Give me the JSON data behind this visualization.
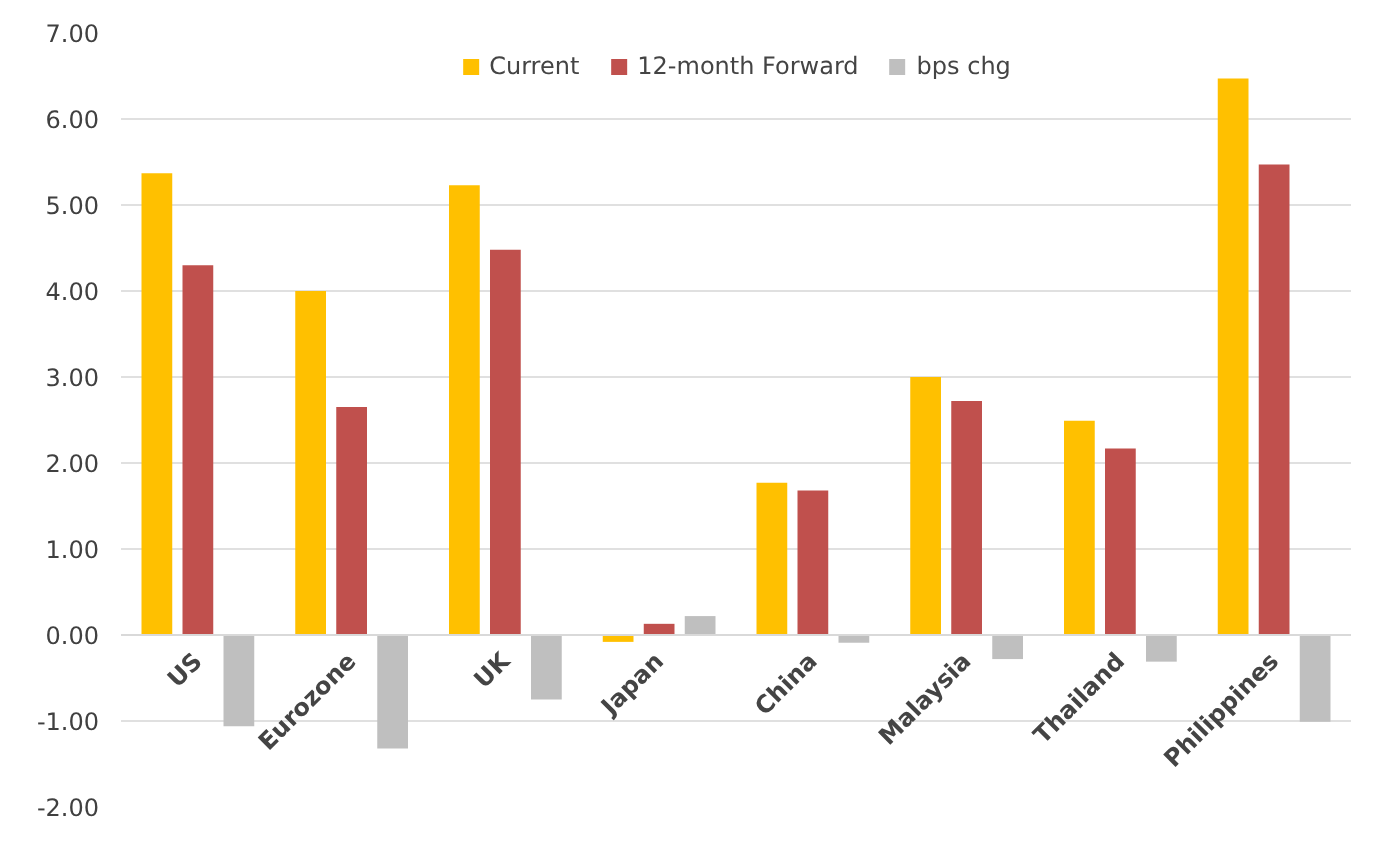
{
  "chart_data": {
    "type": "bar",
    "categories": [
      "US",
      "Eurozone",
      "UK",
      "Japan",
      "China",
      "Malaysia",
      "Thailand",
      "Philippines"
    ],
    "series": [
      {
        "name": "Current",
        "color": "#ffc000",
        "values": [
          5.37,
          4.0,
          5.23,
          -0.08,
          1.77,
          3.0,
          2.49,
          6.47
        ]
      },
      {
        "name": "12-month Forward",
        "color": "#c0504d",
        "values": [
          4.3,
          2.65,
          4.48,
          0.13,
          1.68,
          2.72,
          2.17,
          5.47
        ]
      },
      {
        "name": "bps chg",
        "color": "#bfbfbf",
        "values": [
          -1.06,
          -1.32,
          -0.75,
          0.22,
          -0.09,
          -0.28,
          -0.31,
          -1.01
        ]
      }
    ],
    "ylim": [
      -2,
      7
    ],
    "yticks": [
      {
        "value": -2,
        "label": "-2.00"
      },
      {
        "value": -1,
        "label": "-1.00"
      },
      {
        "value": 0,
        "label": "0.00"
      },
      {
        "value": 1,
        "label": "1.00"
      },
      {
        "value": 2,
        "label": "2.00"
      },
      {
        "value": 3,
        "label": "3.00"
      },
      {
        "value": 4,
        "label": "4.00"
      },
      {
        "value": 5,
        "label": "5.00"
      },
      {
        "value": 6,
        "label": "6.00"
      },
      {
        "value": 7,
        "label": "7.00"
      }
    ],
    "grid": "y",
    "legend": "top"
  }
}
